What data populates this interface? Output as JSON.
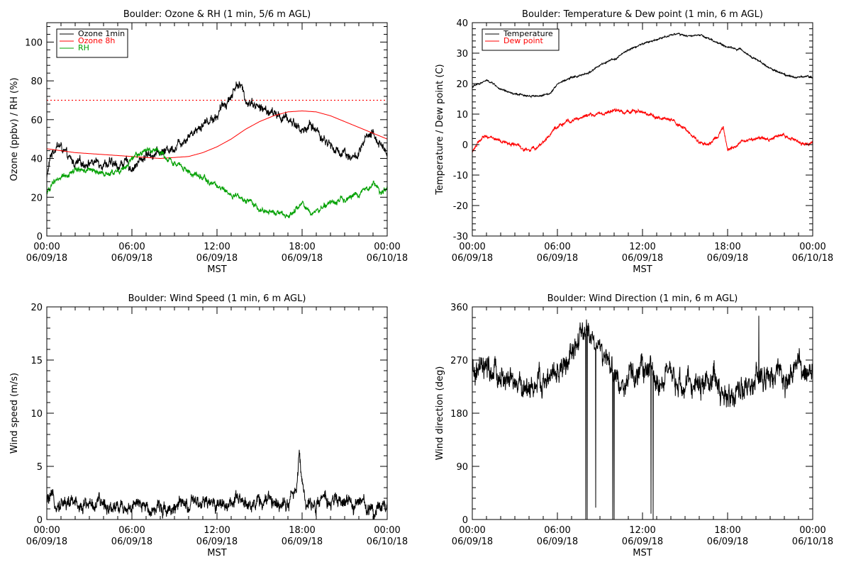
{
  "chart_data": [
    {
      "id": "ozone",
      "type": "line",
      "title": "Boulder: Ozone & RH (1 min, 5/6 m AGL)",
      "xlabel": "MST",
      "ylabel": "Ozone (ppbv) / RH (%)",
      "xlim": [
        0,
        24
      ],
      "ylim": [
        0,
        110
      ],
      "yticks": [
        0,
        20,
        40,
        60,
        80,
        100
      ],
      "xticks": [
        {
          "x": 0,
          "time": "00:00",
          "date": "06/09/18"
        },
        {
          "x": 6,
          "time": "06:00",
          "date": "06/09/18"
        },
        {
          "x": 12,
          "time": "12:00",
          "date": "06/09/18"
        },
        {
          "x": 18,
          "time": "18:00",
          "date": "06/09/18"
        },
        {
          "x": 24,
          "time": "00:00",
          "date": "06/10/18"
        }
      ],
      "legend": "top-left",
      "reference_line": {
        "y": 70,
        "color": "#ff0000",
        "style": "dotted"
      },
      "series": [
        {
          "name": "Ozone 1min",
          "color": "#000000",
          "noise": 2.5,
          "x": [
            0,
            0.3,
            0.7,
            1,
            1.5,
            2,
            3,
            4,
            5,
            5.5,
            6,
            6.5,
            7,
            8,
            9,
            10,
            11,
            12,
            12.5,
            13,
            13.4,
            13.7,
            14,
            14.5,
            15,
            16,
            17,
            17.5,
            18,
            18.5,
            19,
            19.5,
            20,
            20.5,
            21,
            21.5,
            22,
            22.5,
            23,
            23.5,
            24
          ],
          "y": [
            30,
            42,
            47,
            46,
            40,
            37,
            38,
            38,
            36,
            38,
            35,
            38,
            42,
            43,
            46,
            52,
            58,
            62,
            68,
            72,
            79,
            77,
            70,
            69,
            66,
            63,
            60,
            58,
            54,
            57,
            55,
            50,
            47,
            43,
            44,
            40,
            42,
            50,
            52,
            48,
            43
          ]
        },
        {
          "name": "Ozone 8h",
          "color": "#ff0000",
          "noise": 0,
          "x": [
            0,
            1,
            2,
            3,
            4,
            5,
            6,
            7,
            8,
            9,
            10,
            11,
            12,
            13,
            14,
            15,
            16,
            17,
            18,
            19,
            20,
            21,
            22,
            23,
            24
          ],
          "y": [
            45,
            44,
            43,
            42.5,
            42,
            41.5,
            41,
            40.5,
            40,
            40.5,
            41,
            43,
            46,
            50,
            55,
            59,
            62,
            64,
            64.5,
            64,
            62,
            59,
            56,
            53,
            50
          ]
        },
        {
          "name": "RH",
          "color": "#00a000",
          "noise": 1.5,
          "x": [
            0,
            0.5,
            1,
            1.5,
            2,
            3,
            4,
            5,
            5.5,
            6,
            6.5,
            7,
            7.5,
            8,
            9,
            10,
            11,
            12,
            13,
            14,
            15,
            16,
            16.5,
            17,
            17.5,
            18,
            18.5,
            19,
            20,
            21,
            22,
            22.5,
            23,
            23.5,
            24
          ],
          "y": [
            22,
            28,
            31,
            32,
            34,
            34,
            32,
            33,
            35,
            39,
            42,
            44,
            45,
            43,
            38,
            33,
            30,
            26,
            21,
            18,
            14,
            12,
            11,
            11,
            13,
            17,
            12,
            13,
            17,
            19,
            22,
            24,
            27,
            22,
            25
          ]
        }
      ]
    },
    {
      "id": "temp",
      "type": "line",
      "title": "Boulder: Temperature & Dew point (1 min, 6 m AGL)",
      "xlabel": "MST",
      "ylabel": "Temperature / Dew point (C)",
      "xlim": [
        0,
        24
      ],
      "ylim": [
        -30,
        40
      ],
      "yticks": [
        -30,
        -20,
        -10,
        0,
        10,
        20,
        30,
        40
      ],
      "xticks": [
        {
          "x": 0,
          "time": "00:00",
          "date": "06/09/18"
        },
        {
          "x": 6,
          "time": "06:00",
          "date": "06/09/18"
        },
        {
          "x": 12,
          "time": "12:00",
          "date": "06/09/18"
        },
        {
          "x": 18,
          "time": "18:00",
          "date": "06/09/18"
        },
        {
          "x": 24,
          "time": "00:00",
          "date": "06/10/18"
        }
      ],
      "legend": "top-left",
      "series": [
        {
          "name": "Temperature",
          "color": "#000000",
          "noise": 0.3,
          "x": [
            0,
            0.5,
            1,
            1.5,
            2,
            3,
            4,
            5,
            5.5,
            6,
            6.5,
            7,
            8,
            9,
            10,
            11,
            12,
            13,
            14,
            14.5,
            15,
            16,
            16.5,
            17,
            17.5,
            18,
            19,
            20,
            21,
            22,
            23,
            23.5,
            24
          ],
          "y": [
            19,
            20,
            21,
            20,
            18,
            16.5,
            16,
            16,
            17,
            20,
            21,
            22,
            23,
            26,
            28,
            31,
            33,
            34.5,
            36,
            36.5,
            35.5,
            36,
            35,
            34,
            33,
            32,
            31,
            28,
            25,
            23,
            22,
            22.5,
            22
          ]
        },
        {
          "name": "Dew point",
          "color": "#ff0000",
          "noise": 0.6,
          "x": [
            0,
            0.5,
            1,
            1.5,
            2,
            3,
            3.5,
            4,
            4.5,
            5,
            5.5,
            6,
            6.5,
            7,
            8,
            9,
            10,
            11,
            12,
            13,
            14,
            15,
            16,
            16.5,
            17,
            17.5,
            17.7,
            18,
            18.5,
            19,
            20,
            21,
            22,
            23,
            23.5,
            24
          ],
          "y": [
            -2,
            1,
            3,
            2,
            1,
            0,
            -1,
            -2,
            -1,
            1,
            3,
            6,
            7,
            8,
            9.5,
            10,
            11,
            11,
            10.5,
            9,
            8,
            5,
            1,
            0,
            1,
            4,
            5,
            -2,
            -1,
            1,
            2,
            2,
            3,
            1,
            0,
            0.5
          ]
        }
      ]
    },
    {
      "id": "wspd",
      "type": "line",
      "title": "Boulder: Wind Speed (1 min, 6 m AGL)",
      "xlabel": "MST",
      "ylabel": "Wind speed (m/s)",
      "xlim": [
        0,
        24
      ],
      "ylim": [
        0,
        20
      ],
      "yticks": [
        0,
        5,
        10,
        15,
        20
      ],
      "xticks": [
        {
          "x": 0,
          "time": "00:00",
          "date": "06/09/18"
        },
        {
          "x": 6,
          "time": "06:00",
          "date": "06/09/18"
        },
        {
          "x": 12,
          "time": "12:00",
          "date": "06/09/18"
        },
        {
          "x": 18,
          "time": "18:00",
          "date": "06/09/18"
        },
        {
          "x": 24,
          "time": "00:00",
          "date": "06/10/18"
        }
      ],
      "series": [
        {
          "name": "",
          "color": "#000000",
          "noise": 0.7,
          "floor": 0,
          "x": [
            0,
            2,
            4,
            6,
            8,
            10,
            12,
            14,
            16,
            17,
            17.6,
            17.8,
            18,
            18.3,
            18.6,
            19,
            20,
            22,
            23,
            24
          ],
          "y": [
            1.8,
            1.5,
            1.4,
            1.2,
            1.1,
            1.3,
            1.5,
            1.6,
            1.7,
            1.8,
            2.5,
            6.5,
            3.5,
            1.5,
            1.2,
            1.6,
            1.7,
            1.5,
            1.0,
            1.5
          ]
        }
      ]
    },
    {
      "id": "wdir",
      "type": "line",
      "title": "Boulder: Wind Direction (1 min, 6 m AGL)",
      "xlabel": "MST",
      "ylabel": "Wind direction (deg)",
      "xlim": [
        0,
        24
      ],
      "ylim": [
        0,
        360
      ],
      "yticks": [
        0,
        90,
        180,
        270,
        360
      ],
      "xticks": [
        {
          "x": 0,
          "time": "00:00",
          "date": "06/09/18"
        },
        {
          "x": 6,
          "time": "06:00",
          "date": "06/09/18"
        },
        {
          "x": 12,
          "time": "12:00",
          "date": "06/09/18"
        },
        {
          "x": 18,
          "time": "18:00",
          "date": "06/09/18"
        },
        {
          "x": 24,
          "time": "00:00",
          "date": "06/10/18"
        }
      ],
      "series": [
        {
          "name": "",
          "color": "#000000",
          "noise": 22,
          "floor": 0,
          "ceil": 360,
          "x": [
            0,
            1,
            2,
            3,
            4,
            5,
            6,
            7,
            7.5,
            8,
            9,
            10,
            11,
            12,
            13,
            14,
            15,
            16,
            17,
            18,
            19,
            20,
            21,
            22,
            23,
            24
          ],
          "y": [
            245,
            250,
            240,
            225,
            225,
            230,
            245,
            275,
            300,
            320,
            290,
            240,
            230,
            260,
            240,
            235,
            225,
            230,
            240,
            205,
            225,
            235,
            240,
            235,
            255,
            240
          ],
          "spikes": [
            {
              "x": 8.0,
              "y": 0
            },
            {
              "x": 8.1,
              "y": 0
            },
            {
              "x": 8.7,
              "y": 20
            },
            {
              "x": 9.9,
              "y": 0
            },
            {
              "x": 10.0,
              "y": 5
            },
            {
              "x": 12.6,
              "y": 10
            },
            {
              "x": 12.75,
              "y": 0
            },
            {
              "x": 20.2,
              "y": 345
            }
          ]
        }
      ]
    }
  ]
}
